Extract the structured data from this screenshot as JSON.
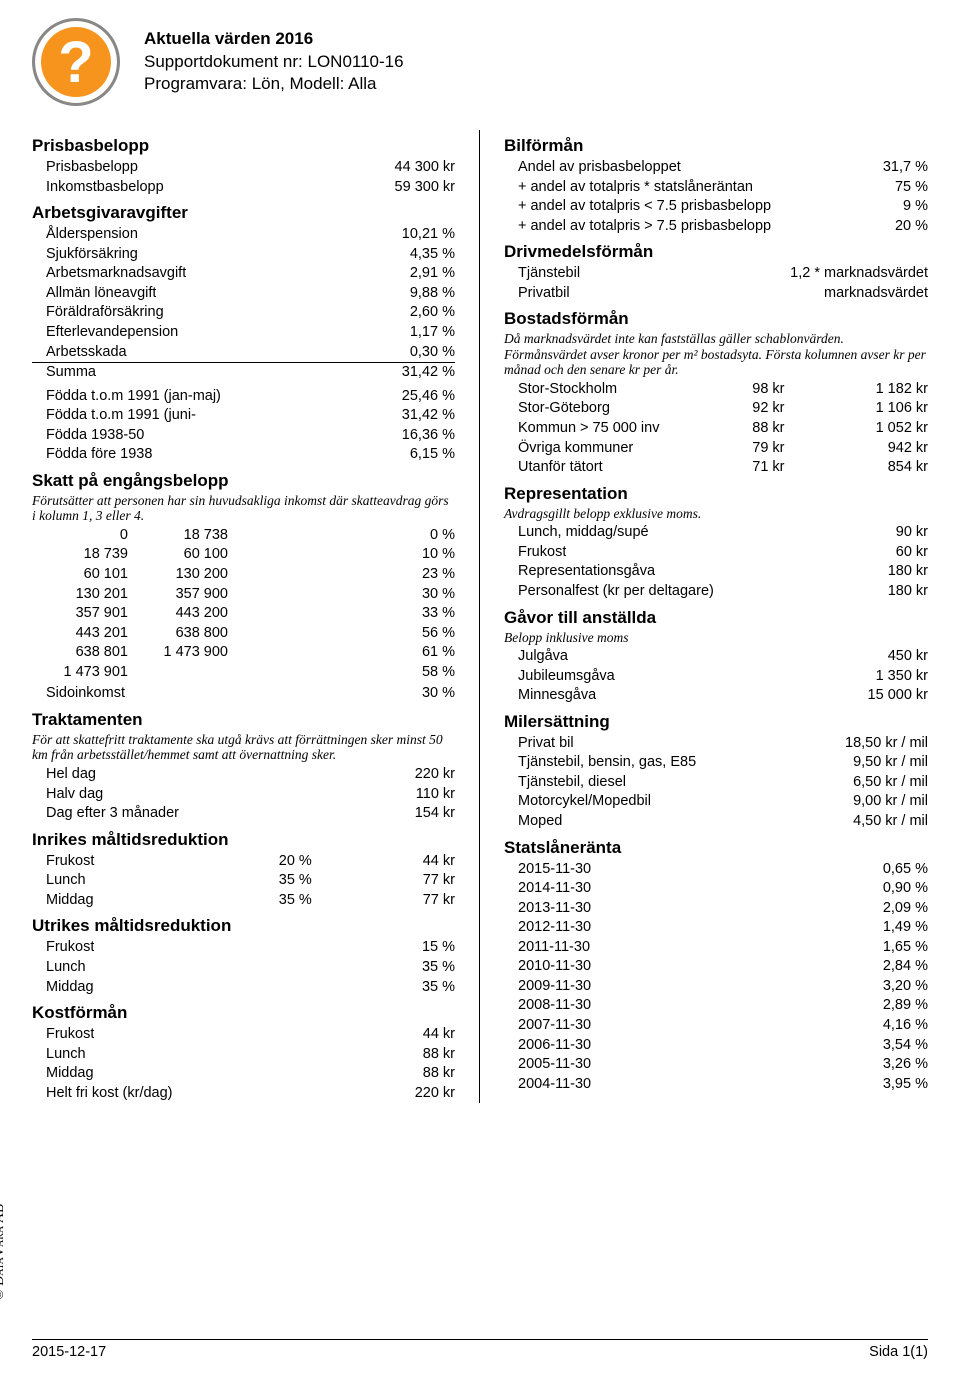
{
  "header": {
    "title": "Aktuella värden 2016",
    "line2": "Supportdokument nr: LON0110-16",
    "line3": "Programvara: Lön, Modell: Alla"
  },
  "copyright": "© DataVara AB",
  "left": {
    "prisbasbelopp": {
      "title": "Prisbasbelopp",
      "rows": [
        {
          "k": "Prisbasbelopp",
          "v": "44 300 kr"
        },
        {
          "k": "Inkomstbasbelopp",
          "v": "59 300 kr"
        }
      ]
    },
    "arbetsgivaravgifter": {
      "title": "Arbetsgivaravgifter",
      "top": [
        {
          "k": "Ålderspension",
          "v": "10,21 %"
        },
        {
          "k": "Sjukförsäkring",
          "v": "4,35 %"
        },
        {
          "k": "Arbetsmarknadsavgift",
          "v": "2,91 %"
        },
        {
          "k": "Allmän löneavgift",
          "v": "9,88 %"
        },
        {
          "k": "Föräldraförsäkring",
          "v": "2,60 %"
        },
        {
          "k": "Efterlevandepension",
          "v": "1,17 %"
        },
        {
          "k": "Arbetsskada",
          "v": "0,30 %",
          "underline": true
        },
        {
          "k": "Summa",
          "v": "31,42 %"
        }
      ],
      "extra": [
        {
          "k": "Födda t.o.m 1991 (jan-maj)",
          "v": "25,46 %"
        },
        {
          "k": "Födda t.o.m 1991 (juni-",
          "v": "31,42 %"
        },
        {
          "k": "Födda 1938-50",
          "v": "16,36 %"
        },
        {
          "k": "Födda före 1938",
          "v": "6,15 %"
        }
      ]
    },
    "skatt": {
      "title": "Skatt på engångsbelopp",
      "note": "Förutsätter att personen har sin huvudsakliga inkomst där skatteavdrag görs i kolumn 1, 3 eller 4.",
      "rows": [
        {
          "c1": "0",
          "c2": "18 738",
          "c3": "0 %"
        },
        {
          "c1": "18 739",
          "c2": "60 100",
          "c3": "10 %"
        },
        {
          "c1": "60 101",
          "c2": "130 200",
          "c3": "23 %"
        },
        {
          "c1": "130 201",
          "c2": "357 900",
          "c3": "30 %"
        },
        {
          "c1": "357 901",
          "c2": "443 200",
          "c3": "33 %"
        },
        {
          "c1": "443 201",
          "c2": "638 800",
          "c3": "56 %"
        },
        {
          "c1": "638 801",
          "c2": "1 473 900",
          "c3": "61 %"
        },
        {
          "c1": "1 473 901",
          "c2": "",
          "c3": "58 %"
        }
      ],
      "sido": {
        "k": "Sidoinkomst",
        "v": "30 %"
      }
    },
    "traktamenten": {
      "title": "Traktamenten",
      "note": "För att skattefritt traktamente ska utgå krävs att förrättningen sker minst 50 km från arbetsstället/hemmet samt att övernattning sker.",
      "rows": [
        {
          "k": "Hel dag",
          "v": "220 kr"
        },
        {
          "k": "Halv dag",
          "v": "110 kr"
        },
        {
          "k": "Dag efter 3 månader",
          "v": "154 kr"
        }
      ]
    },
    "inrikes": {
      "title": "Inrikes måltidsreduktion",
      "rows": [
        {
          "c1": "Frukost",
          "c2": "20 %",
          "c3": "44 kr"
        },
        {
          "c1": "Lunch",
          "c2": "35 %",
          "c3": "77 kr"
        },
        {
          "c1": "Middag",
          "c2": "35 %",
          "c3": "77 kr"
        }
      ]
    },
    "utrikes": {
      "title": "Utrikes måltidsreduktion",
      "rows": [
        {
          "k": "Frukost",
          "v": "15 %"
        },
        {
          "k": "Lunch",
          "v": "35 %"
        },
        {
          "k": "Middag",
          "v": "35 %"
        }
      ]
    },
    "kostforman": {
      "title": "Kostförmån",
      "rows": [
        {
          "k": "Frukost",
          "v": "44 kr"
        },
        {
          "k": "Lunch",
          "v": "88 kr"
        },
        {
          "k": "Middag",
          "v": "88 kr"
        },
        {
          "k": "Helt fri kost (kr/dag)",
          "v": "220 kr"
        }
      ]
    }
  },
  "right": {
    "bilforman": {
      "title": "Bilförmån",
      "rows": [
        {
          "k": "Andel av prisbasbeloppet",
          "v": "31,7 %"
        },
        {
          "k": "+ andel av totalpris * statslåneräntan",
          "v": "75 %"
        },
        {
          "k": "+ andel av totalpris < 7.5 prisbasbelopp",
          "v": "9 %"
        },
        {
          "k": "+ andel av totalpris > 7.5 prisbasbelopp",
          "v": "20 %"
        }
      ]
    },
    "drivmedel": {
      "title": "Drivmedelsförmån",
      "rows": [
        {
          "k": "Tjänstebil",
          "v": "1,2 * marknadsvärdet"
        },
        {
          "k": "Privatbil",
          "v": "marknadsvärdet"
        }
      ]
    },
    "bostad": {
      "title": "Bostadsförmån",
      "note": "Då marknadsvärdet inte kan fastställas gäller schablonvärden. Förmånsvärdet avser kronor per m² bostadsyta. Första kolumnen avser kr per månad och den senare kr per år.",
      "rows": [
        {
          "c1": "Stor-Stockholm",
          "c2": "98 kr",
          "c3": "1 182 kr"
        },
        {
          "c1": "Stor-Göteborg",
          "c2": "92 kr",
          "c3": "1 106 kr"
        },
        {
          "c1": "Kommun > 75 000 inv",
          "c2": "88 kr",
          "c3": "1 052 kr"
        },
        {
          "c1": "Övriga kommuner",
          "c2": "79 kr",
          "c3": "942 kr"
        },
        {
          "c1": "Utanför tätort",
          "c2": "71 kr",
          "c3": "854 kr"
        }
      ]
    },
    "representation": {
      "title": "Representation",
      "note": "Avdragsgillt belopp exklusive moms.",
      "rows": [
        {
          "k": "Lunch, middag/supé",
          "v": "90 kr"
        },
        {
          "k": "Frukost",
          "v": "60 kr"
        },
        {
          "k": "Representationsgåva",
          "v": "180 kr"
        },
        {
          "k": "Personalfest (kr per deltagare)",
          "v": "180 kr"
        }
      ]
    },
    "gavor": {
      "title": "Gåvor till anställda",
      "note": "Belopp inklusive moms",
      "rows": [
        {
          "k": "Julgåva",
          "v": "450 kr"
        },
        {
          "k": "Jubileumsgåva",
          "v": "1 350 kr"
        },
        {
          "k": "Minnesgåva",
          "v": "15 000 kr"
        }
      ]
    },
    "milersattning": {
      "title": "Milersättning",
      "rows": [
        {
          "k": "Privat bil",
          "v": "18,50 kr / mil"
        },
        {
          "k": "Tjänstebil, bensin, gas, E85",
          "v": "9,50 kr / mil"
        },
        {
          "k": "Tjänstebil, diesel",
          "v": "6,50 kr / mil"
        },
        {
          "k": "Motorcykel/Mopedbil",
          "v": "9,00 kr / mil"
        },
        {
          "k": "Moped",
          "v": "4,50 kr / mil"
        }
      ]
    },
    "statslaneranta": {
      "title": "Statslåneränta",
      "rows": [
        {
          "k": "2015-11-30",
          "v": "0,65 %"
        },
        {
          "k": "2014-11-30",
          "v": "0,90 %"
        },
        {
          "k": "2013-11-30",
          "v": "2,09 %"
        },
        {
          "k": "2012-11-30",
          "v": "1,49 %"
        },
        {
          "k": "2011-11-30",
          "v": "1,65 %"
        },
        {
          "k": "2010-11-30",
          "v": "2,84 %"
        },
        {
          "k": "2009-11-30",
          "v": "3,20 %"
        },
        {
          "k": "2008-11-30",
          "v": "2,89 %"
        },
        {
          "k": "2007-11-30",
          "v": "4,16 %"
        },
        {
          "k": "2006-11-30",
          "v": "3,54 %"
        },
        {
          "k": "2005-11-30",
          "v": "3,26 %"
        },
        {
          "k": "2004-11-30",
          "v": "3,95 %"
        }
      ]
    }
  },
  "footer": {
    "left": "2015-12-17",
    "right": "Sida 1(1)"
  }
}
